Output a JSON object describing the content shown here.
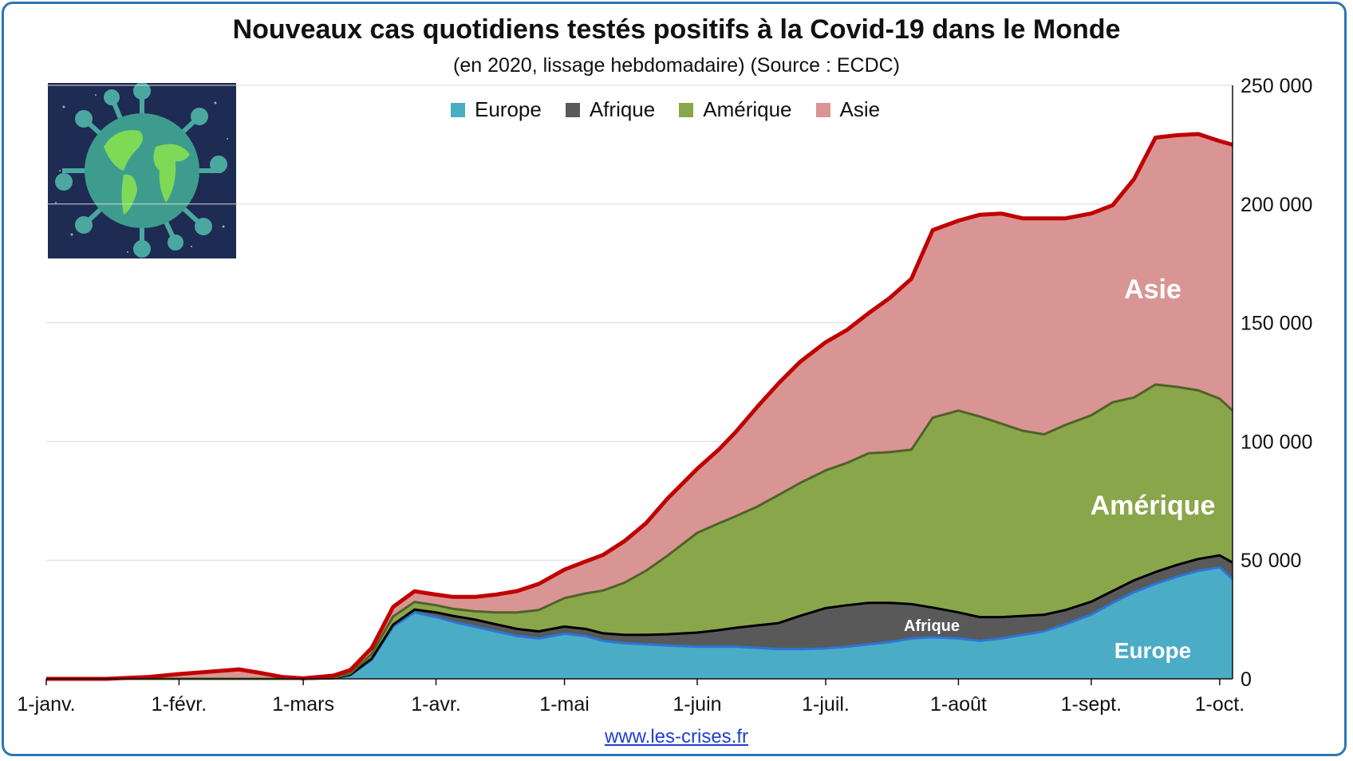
{
  "title": "Nouveaux cas quotidiens testés positifs à la Covid-19 dans le Monde",
  "subtitle": "(en 2020, lissage hebdomadaire) (Source : ECDC)",
  "url": "www.les-crises.fr",
  "legend": [
    {
      "label": "Europe",
      "color": "#4bacc6"
    },
    {
      "label": "Afrique",
      "color": "#595959"
    },
    {
      "label": "Amérique",
      "color": "#8aa64b"
    },
    {
      "label": "Asie",
      "color": "#d99594"
    }
  ],
  "annotations": {
    "asie": "Asie",
    "amerique": "Amérique",
    "afrique": "Afrique",
    "europe": "Europe"
  },
  "chart_data": {
    "type": "area",
    "stacked": true,
    "title": "Nouveaux cas quotidiens testés positifs à la Covid-19 dans le Monde",
    "subtitle": "(en 2020, lissage hebdomadaire) (Source : ECDC)",
    "x_type": "date",
    "x": [
      "2020-01-01",
      "2020-01-15",
      "2020-01-25",
      "2020-02-01",
      "2020-02-08",
      "2020-02-15",
      "2020-02-20",
      "2020-02-25",
      "2020-03-01",
      "2020-03-08",
      "2020-03-12",
      "2020-03-17",
      "2020-03-22",
      "2020-03-27",
      "2020-04-01",
      "2020-04-05",
      "2020-04-10",
      "2020-04-15",
      "2020-04-20",
      "2020-04-25",
      "2020-05-01",
      "2020-05-06",
      "2020-05-10",
      "2020-05-15",
      "2020-05-20",
      "2020-05-25",
      "2020-06-01",
      "2020-06-06",
      "2020-06-10",
      "2020-06-15",
      "2020-06-20",
      "2020-06-25",
      "2020-07-01",
      "2020-07-06",
      "2020-07-11",
      "2020-07-16",
      "2020-07-21",
      "2020-07-26",
      "2020-08-01",
      "2020-08-06",
      "2020-08-11",
      "2020-08-16",
      "2020-08-21",
      "2020-08-26",
      "2020-09-01",
      "2020-09-06",
      "2020-09-11",
      "2020-09-16",
      "2020-09-21",
      "2020-09-26",
      "2020-10-01",
      "2020-10-04"
    ],
    "series": [
      {
        "name": "Europe",
        "color": "#4bacc6",
        "line_color": "#2e75d6",
        "values": [
          0,
          0,
          0,
          0,
          0,
          0,
          0,
          0,
          0,
          200,
          1500,
          8000,
          22000,
          28000,
          26000,
          24000,
          22000,
          20000,
          18000,
          17000,
          19000,
          18000,
          16000,
          15000,
          14500,
          14000,
          13500,
          13500,
          13500,
          13000,
          12500,
          12500,
          12800,
          13500,
          14500,
          15500,
          17000,
          17500,
          17000,
          16000,
          17000,
          18500,
          20000,
          23000,
          27000,
          32000,
          36500,
          40000,
          43000,
          45500,
          47000,
          42000
        ]
      },
      {
        "name": "Afrique",
        "color": "#595959",
        "line_color": "#000000",
        "values": [
          0,
          0,
          0,
          0,
          0,
          0,
          0,
          0,
          0,
          50,
          200,
          500,
          800,
          1200,
          2000,
          2500,
          3000,
          3000,
          3000,
          3000,
          3000,
          3000,
          3200,
          3500,
          4000,
          4800,
          6000,
          7000,
          8000,
          9500,
          11000,
          14000,
          17000,
          17500,
          17500,
          16500,
          14500,
          12500,
          11000,
          10000,
          9000,
          8000,
          7000,
          6000,
          5500,
          5000,
          5000,
          5000,
          5000,
          5000,
          5000,
          7000
        ]
      },
      {
        "name": "Amérique",
        "color": "#8aa64b",
        "line_color": "#4f6228",
        "values": [
          0,
          0,
          0,
          0,
          0,
          0,
          0,
          0,
          0,
          100,
          500,
          2000,
          3500,
          3200,
          3000,
          3000,
          3500,
          5000,
          7000,
          9000,
          12000,
          15000,
          18000,
          22000,
          27000,
          33000,
          42000,
          45000,
          47000,
          50000,
          54000,
          56000,
          58000,
          60000,
          63000,
          63500,
          65000,
          80000,
          85000,
          84500,
          81500,
          78000,
          76000,
          78000,
          78500,
          79500,
          77000,
          79000,
          75000,
          71000,
          66000,
          64000
        ]
      },
      {
        "name": "Asie",
        "color": "#d99594",
        "line_color": "#c00000",
        "values": [
          0,
          0,
          800,
          2000,
          3000,
          4000,
          2500,
          800,
          200,
          1000,
          1500,
          2500,
          4000,
          4500,
          4500,
          5000,
          6000,
          7500,
          9000,
          11000,
          12000,
          13500,
          15000,
          17500,
          20000,
          24000,
          27000,
          31000,
          35500,
          42000,
          47000,
          51000,
          54000,
          56000,
          59000,
          65000,
          72000,
          79000,
          80000,
          85000,
          88500,
          89500,
          91000,
          87000,
          85000,
          83000,
          92000,
          104000,
          106000,
          108000,
          108500,
          112000
        ]
      }
    ],
    "y_range": [
      0,
      250000
    ],
    "y_ticks": [
      "0",
      "50 000",
      "100 000",
      "150 000",
      "200 000",
      "250 000"
    ],
    "x_ticks": [
      "1-janv.",
      "1-févr.",
      "1-mars",
      "1-avr.",
      "1-mai",
      "1-juin",
      "1-juil.",
      "1-août",
      "1-sept.",
      "1-oct."
    ],
    "x_tick_dates": [
      "2020-01-01",
      "2020-02-01",
      "2020-03-01",
      "2020-04-01",
      "2020-05-01",
      "2020-06-01",
      "2020-07-01",
      "2020-08-01",
      "2020-09-01",
      "2020-10-01"
    ],
    "y_axis_side": "right",
    "grid": "horizontal",
    "legend_position": "top"
  }
}
